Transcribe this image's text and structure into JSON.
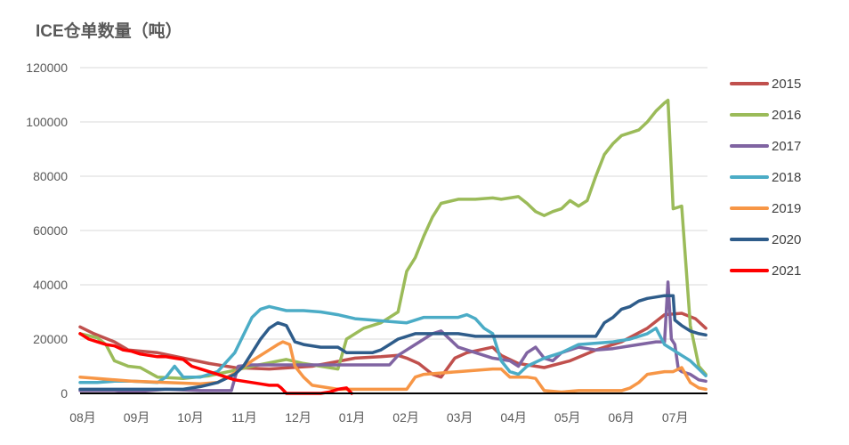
{
  "chart_data": {
    "type": "line",
    "title": "ICE仓单数量（吨）",
    "ylim": [
      0,
      120000
    ],
    "yticks": [
      "0",
      "20000",
      "40000",
      "60000",
      "80000",
      "100000",
      "120000"
    ],
    "xlim": [
      0,
      365
    ],
    "categories": [
      "08月",
      "09月",
      "10月",
      "11月",
      "12月",
      "01月",
      "02月",
      "03月",
      "04月",
      "05月",
      "06月",
      "07月"
    ],
    "legend_position": "right",
    "grid": true,
    "series": [
      {
        "name": "2015",
        "color": "#c0504d",
        "x": [
          0,
          8,
          20,
          28,
          45,
          60,
          75,
          90,
          110,
          135,
          160,
          175,
          185,
          190,
          197,
          205,
          210,
          218,
          225,
          240,
          245,
          255,
          270,
          285,
          300,
          315,
          330,
          340,
          350,
          358,
          364
        ],
        "y": [
          24500,
          22000,
          19000,
          16000,
          15000,
          13000,
          11000,
          9500,
          9000,
          10000,
          13000,
          13500,
          14000,
          13000,
          11000,
          7000,
          6000,
          13000,
          15000,
          17000,
          14000,
          11000,
          9500,
          12000,
          16000,
          19000,
          24000,
          29000,
          29500,
          27500,
          24000
        ]
      },
      {
        "name": "2016",
        "color": "#9bbb59",
        "x": [
          0,
          10,
          15,
          20,
          28,
          35,
          45,
          60,
          75,
          90,
          100,
          120,
          130,
          140,
          150,
          155,
          165,
          175,
          180,
          185,
          190,
          195,
          200,
          205,
          210,
          220,
          230,
          240,
          245,
          255,
          260,
          265,
          270,
          275,
          280,
          285,
          290,
          295,
          300,
          305,
          310,
          315,
          320,
          325,
          330,
          335,
          340,
          342,
          345,
          350,
          355,
          360,
          364
        ],
        "y": [
          22000,
          20500,
          18000,
          12000,
          10000,
          9500,
          6000,
          5500,
          6500,
          8500,
          10000,
          12500,
          11000,
          10000,
          9000,
          20000,
          24000,
          26000,
          28000,
          30000,
          45000,
          50000,
          58000,
          65000,
          70000,
          71500,
          71500,
          72000,
          71500,
          72500,
          70000,
          67000,
          65500,
          67000,
          68000,
          71000,
          69000,
          71000,
          80000,
          88000,
          92000,
          95000,
          96000,
          97000,
          100000,
          104000,
          107000,
          108000,
          68000,
          69000,
          25000,
          10000,
          7000
        ]
      },
      {
        "name": "2017",
        "color": "#8064a2",
        "x": [
          0,
          10,
          20,
          30,
          50,
          70,
          80,
          88,
          92,
          100,
          120,
          140,
          160,
          170,
          180,
          185,
          190,
          195,
          200,
          205,
          210,
          215,
          220,
          225,
          235,
          240,
          250,
          255,
          260,
          265,
          270,
          275,
          280,
          290,
          300,
          310,
          320,
          330,
          335,
          340,
          342,
          344,
          346,
          348,
          350,
          355,
          360,
          364
        ],
        "y": [
          1000,
          1000,
          1000,
          500,
          1500,
          1000,
          1000,
          1000,
          10000,
          10500,
          10500,
          10500,
          10500,
          10500,
          10500,
          14000,
          16000,
          18000,
          20000,
          22000,
          23000,
          20000,
          17000,
          16000,
          14000,
          13000,
          12000,
          10000,
          15000,
          17000,
          13000,
          12000,
          15000,
          17000,
          16000,
          16500,
          17500,
          18500,
          19000,
          19000,
          41000,
          20000,
          18000,
          9000,
          8000,
          7000,
          5000,
          4500
        ]
      },
      {
        "name": "2018",
        "color": "#4bacc6",
        "x": [
          0,
          10,
          20,
          30,
          45,
          50,
          55,
          60,
          70,
          80,
          90,
          100,
          105,
          110,
          120,
          130,
          140,
          150,
          160,
          170,
          180,
          190,
          200,
          210,
          220,
          225,
          230,
          235,
          240,
          245,
          250,
          255,
          260,
          270,
          280,
          290,
          300,
          310,
          320,
          330,
          335,
          340,
          345,
          350,
          355,
          360,
          364
        ],
        "y": [
          4000,
          4000,
          4500,
          4500,
          4000,
          6000,
          10000,
          6000,
          6000,
          8000,
          15000,
          28000,
          31000,
          32000,
          30500,
          30500,
          30000,
          29000,
          27500,
          27000,
          26500,
          26000,
          28000,
          28000,
          28000,
          29000,
          27500,
          24000,
          22000,
          12000,
          8000,
          7000,
          10000,
          13000,
          15000,
          18000,
          18500,
          19000,
          20000,
          22000,
          24000,
          18000,
          16000,
          14000,
          12000,
          9000,
          6500
        ]
      },
      {
        "name": "2019",
        "color": "#f79646",
        "x": [
          0,
          10,
          20,
          30,
          50,
          70,
          80,
          90,
          100,
          110,
          115,
          118,
          122,
          125,
          130,
          135,
          140,
          145,
          150,
          160,
          170,
          180,
          190,
          195,
          200,
          210,
          220,
          230,
          240,
          245,
          250,
          260,
          265,
          270,
          280,
          290,
          300,
          310,
          315,
          320,
          325,
          330,
          340,
          345,
          350,
          355,
          360,
          364
        ],
        "y": [
          6000,
          5500,
          5000,
          4500,
          4000,
          3500,
          4000,
          7500,
          12000,
          16000,
          18000,
          19000,
          18000,
          10000,
          6000,
          3000,
          2500,
          2000,
          1500,
          1500,
          1500,
          1500,
          1500,
          6000,
          7000,
          7500,
          8000,
          8500,
          9000,
          9000,
          6000,
          6000,
          5500,
          1000,
          500,
          1000,
          1000,
          1000,
          1000,
          2000,
          4000,
          7000,
          8000,
          8000,
          9500,
          4000,
          2000,
          1500
        ]
      },
      {
        "name": "2020",
        "color": "#2e5c8a",
        "x": [
          0,
          20,
          40,
          60,
          70,
          80,
          90,
          95,
          100,
          105,
          110,
          115,
          120,
          125,
          130,
          140,
          150,
          155,
          160,
          170,
          175,
          180,
          185,
          195,
          200,
          210,
          220,
          230,
          240,
          250,
          260,
          270,
          280,
          290,
          300,
          305,
          310,
          315,
          320,
          325,
          330,
          340,
          345,
          346,
          350,
          355,
          360,
          364
        ],
        "y": [
          1500,
          1500,
          1500,
          1500,
          2500,
          4000,
          7000,
          10000,
          15000,
          20000,
          24000,
          26000,
          25000,
          19000,
          18000,
          17000,
          17000,
          15000,
          15000,
          15000,
          16000,
          18000,
          20000,
          22000,
          22000,
          22000,
          22000,
          21000,
          21000,
          21000,
          21000,
          21000,
          21000,
          21000,
          21000,
          26000,
          28000,
          31000,
          32000,
          34000,
          35000,
          36000,
          36000,
          27000,
          25000,
          23000,
          22000,
          21500
        ]
      },
      {
        "name": "2021",
        "color": "#ff0000",
        "x": [
          0,
          5,
          10,
          15,
          20,
          25,
          30,
          35,
          40,
          45,
          50,
          55,
          60,
          65,
          70,
          75,
          80,
          85,
          90,
          95,
          100,
          105,
          110,
          115,
          117,
          120,
          125,
          130,
          140,
          145,
          150,
          155,
          158
        ],
        "y": [
          22000,
          20000,
          19000,
          18000,
          17500,
          16000,
          15500,
          14500,
          14000,
          13500,
          13500,
          13000,
          12500,
          10000,
          9000,
          8000,
          7000,
          6000,
          5000,
          4500,
          4000,
          3500,
          3000,
          3000,
          2000,
          0,
          0,
          0,
          0,
          500,
          1500,
          2000,
          0
        ]
      }
    ]
  }
}
